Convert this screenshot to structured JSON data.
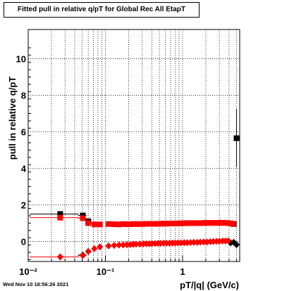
{
  "title": "Fitted pull in relative q/pT for Global Rec All EtapT",
  "footer": "Wed Nov 10 18:56:26 2021",
  "chart_data": {
    "type": "scatter",
    "title": "Fitted pull in relative q/pT for Global Rec All EtapT",
    "xlabel": "pT/|q| (GeV/c)",
    "ylabel": "pull in relative q/pT",
    "xscale": "log",
    "xlim": [
      0.01,
      5.5
    ],
    "ylim": [
      -1.1,
      11.6
    ],
    "grid": true,
    "xtick_labels": [
      {
        "x": 0.01,
        "label": "10⁻²"
      },
      {
        "x": 0.1,
        "label": "10⁻¹"
      },
      {
        "x": 1,
        "label": "1"
      }
    ],
    "yticks": [
      0,
      2,
      4,
      6,
      8,
      10
    ],
    "colors": {
      "black_series": "#000000",
      "red_series": "#ff0000"
    },
    "series": [
      {
        "marker": "square",
        "color": "#000000",
        "x": [
          0.026,
          0.051,
          0.06,
          4.6,
          5.0
        ],
        "y": [
          1.5,
          1.42,
          1.1,
          0.95,
          5.65
        ],
        "yerr": [
          0.0,
          0.0,
          0.0,
          0.15,
          1.6
        ],
        "x_lo": [
          0.0105,
          0.044,
          0.055,
          4.3,
          4.85
        ],
        "x_hi": [
          0.045,
          0.057,
          0.066,
          4.9,
          5.2
        ]
      },
      {
        "marker": "square",
        "color": "#ff0000",
        "x": [
          0.026,
          0.051,
          0.06,
          0.072,
          0.085,
          0.11,
          0.13,
          0.15,
          0.17,
          0.19,
          0.21,
          0.23,
          0.25,
          0.28,
          0.31,
          0.34,
          0.37,
          0.4,
          0.44,
          0.48,
          0.52,
          0.57,
          0.62,
          0.68,
          0.74,
          0.8,
          0.87,
          0.95,
          1.05,
          1.15,
          1.27,
          1.4,
          1.55,
          1.7,
          1.88,
          2.07,
          2.28,
          2.5,
          2.75,
          3.0,
          3.3,
          3.6,
          3.9,
          4.2,
          4.5
        ],
        "y": [
          1.3,
          1.27,
          1.0,
          0.93,
          0.93,
          0.95,
          0.94,
          0.93,
          0.95,
          0.94,
          0.94,
          0.95,
          0.95,
          0.95,
          0.95,
          0.96,
          0.96,
          0.96,
          0.96,
          0.96,
          0.97,
          0.97,
          0.97,
          0.98,
          0.98,
          0.98,
          0.98,
          0.99,
          0.99,
          1.0,
          1.0,
          1.0,
          1.0,
          1.0,
          1.01,
          1.01,
          1.01,
          1.01,
          1.01,
          1.01,
          1.02,
          1.01,
          1.0,
          0.99,
          0.96
        ],
        "x_lo": [
          0.0105,
          0.044,
          0.055,
          0.066,
          0.078,
          0.1,
          0.12,
          0.14,
          0.16,
          0.18,
          0.2,
          0.22,
          0.24,
          0.265,
          0.295,
          0.325,
          0.355,
          0.385,
          0.42,
          0.46,
          0.5,
          0.545,
          0.595,
          0.65,
          0.71,
          0.77,
          0.835,
          0.91,
          1.0,
          1.1,
          1.21,
          1.33,
          1.47,
          1.62,
          1.79,
          1.97,
          2.17,
          2.39,
          2.62,
          2.87,
          3.15,
          3.45,
          3.75,
          4.05,
          4.35
        ],
        "x_hi": [
          0.045,
          0.057,
          0.066,
          0.078,
          0.092,
          0.12,
          0.14,
          0.16,
          0.18,
          0.2,
          0.22,
          0.24,
          0.265,
          0.295,
          0.325,
          0.355,
          0.385,
          0.42,
          0.46,
          0.5,
          0.545,
          0.595,
          0.65,
          0.71,
          0.77,
          0.835,
          0.91,
          1.0,
          1.1,
          1.21,
          1.33,
          1.47,
          1.62,
          1.79,
          1.97,
          2.17,
          2.39,
          2.62,
          2.87,
          3.15,
          3.45,
          3.75,
          4.05,
          4.35,
          4.65
        ]
      },
      {
        "marker": "diamond",
        "color": "#000000",
        "x": [
          0.026,
          0.051,
          0.06,
          4.2,
          4.6,
          5.0
        ],
        "y": [
          -0.85,
          -0.75,
          -0.55,
          -0.08,
          -0.05,
          -0.18
        ],
        "x_lo": [
          0.0105,
          0.044,
          0.055,
          3.9,
          4.35,
          4.85
        ],
        "x_hi": [
          0.045,
          0.057,
          0.066,
          4.45,
          4.85,
          5.2
        ]
      },
      {
        "marker": "diamond",
        "color": "#ff0000",
        "x": [
          0.026,
          0.051,
          0.06,
          0.072,
          0.085,
          0.11,
          0.13,
          0.15,
          0.17,
          0.19,
          0.21,
          0.23,
          0.25,
          0.28,
          0.31,
          0.34,
          0.37,
          0.4,
          0.44,
          0.48,
          0.52,
          0.57,
          0.62,
          0.68,
          0.74,
          0.8,
          0.87,
          0.95,
          1.05,
          1.15,
          1.27,
          1.4,
          1.55,
          1.7,
          1.88,
          2.07,
          2.28,
          2.5,
          2.75,
          3.0,
          3.3,
          3.6,
          3.9
        ],
        "y": [
          -0.85,
          -0.78,
          -0.55,
          -0.4,
          -0.3,
          -0.25,
          -0.22,
          -0.2,
          -0.19,
          -0.18,
          -0.17,
          -0.16,
          -0.15,
          -0.15,
          -0.14,
          -0.13,
          -0.13,
          -0.12,
          -0.12,
          -0.11,
          -0.11,
          -0.1,
          -0.1,
          -0.1,
          -0.09,
          -0.09,
          -0.08,
          -0.08,
          -0.07,
          -0.07,
          -0.06,
          -0.05,
          -0.05,
          -0.04,
          -0.03,
          -0.03,
          -0.02,
          -0.01,
          0.0,
          0.01,
          0.02,
          0.02,
          0.03
        ],
        "x_lo": [
          0.0105,
          0.044,
          0.055,
          0.066,
          0.078,
          0.1,
          0.12,
          0.14,
          0.16,
          0.18,
          0.2,
          0.22,
          0.24,
          0.265,
          0.295,
          0.325,
          0.355,
          0.385,
          0.42,
          0.46,
          0.5,
          0.545,
          0.595,
          0.65,
          0.71,
          0.77,
          0.835,
          0.91,
          1.0,
          1.1,
          1.21,
          1.33,
          1.47,
          1.62,
          1.79,
          1.97,
          2.17,
          2.39,
          2.62,
          2.87,
          3.15,
          3.45,
          3.75
        ],
        "x_hi": [
          0.045,
          0.057,
          0.066,
          0.078,
          0.092,
          0.12,
          0.14,
          0.16,
          0.18,
          0.2,
          0.22,
          0.24,
          0.265,
          0.295,
          0.325,
          0.355,
          0.385,
          0.42,
          0.46,
          0.5,
          0.545,
          0.595,
          0.65,
          0.71,
          0.77,
          0.835,
          0.91,
          1.0,
          1.1,
          1.21,
          1.33,
          1.47,
          1.62,
          1.79,
          1.97,
          2.17,
          2.39,
          2.62,
          2.87,
          3.15,
          3.45,
          3.75,
          4.05
        ]
      }
    ]
  }
}
